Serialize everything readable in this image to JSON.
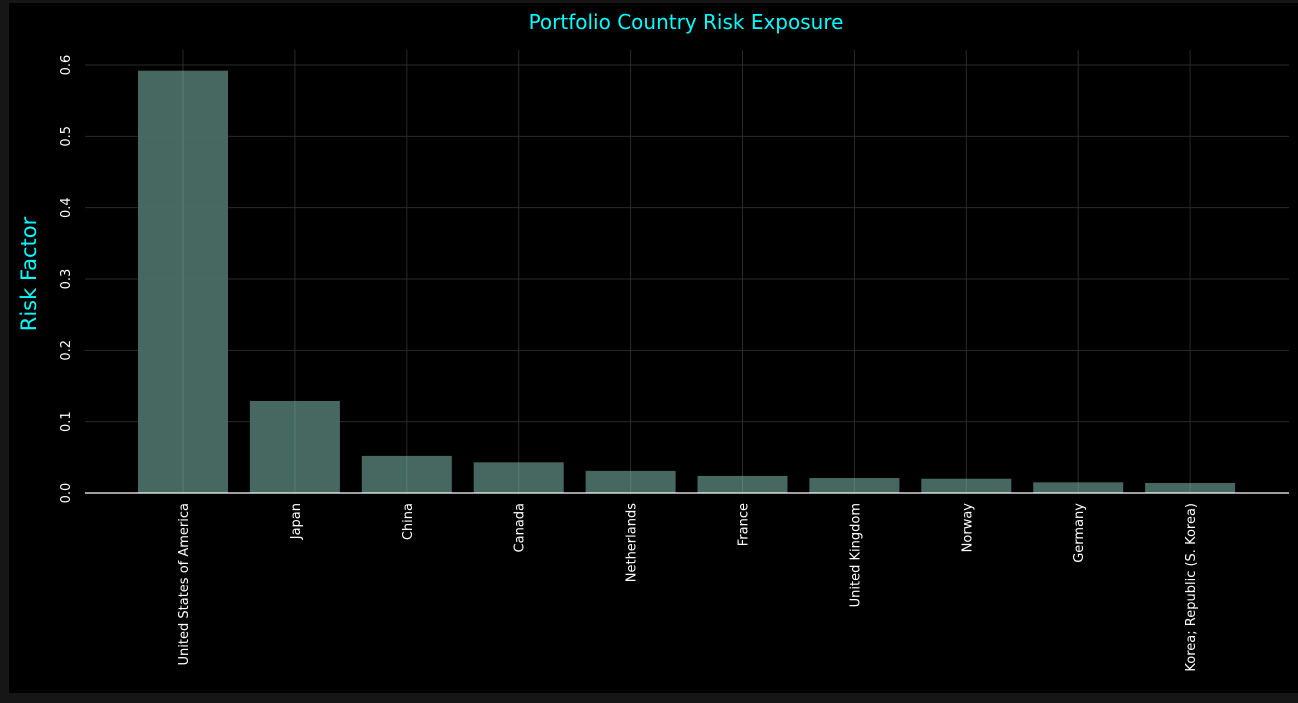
{
  "chart_data": {
    "type": "bar",
    "title": "Portfolio Country Risk Exposure",
    "xlabel": "",
    "ylabel": "Risk Factor",
    "categories": [
      "United States of America",
      "Japan",
      "China",
      "Canada",
      "Netherlands",
      "France",
      "United Kingdom",
      "Norway",
      "Germany",
      "Korea; Republic (S. Korea)"
    ],
    "values": [
      0.592,
      0.129,
      0.052,
      0.043,
      0.031,
      0.024,
      0.021,
      0.02,
      0.015,
      0.014
    ],
    "yticks": [
      "0.0",
      "0.1",
      "0.2",
      "0.3",
      "0.4",
      "0.5",
      "0.6"
    ],
    "ylim": [
      0,
      0.62
    ],
    "grid": true,
    "colors": {
      "bar": "#4a6e66",
      "title": "#00ffff",
      "ylabel": "#00ffff",
      "tick_text": "#ffffff",
      "background": "#000000"
    }
  }
}
